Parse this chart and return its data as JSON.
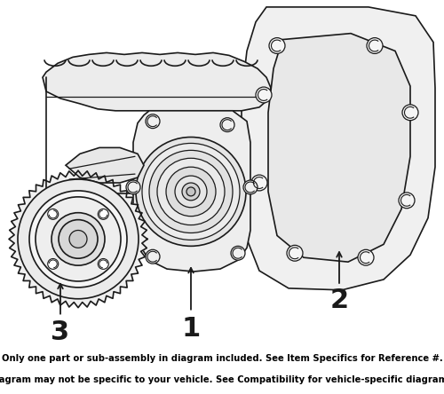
{
  "bg_color": "#ffffff",
  "diagram_bg": "#ffffff",
  "line_color": "#1a1a1a",
  "banner_color": "#e8820c",
  "banner_text_color": "#000000",
  "banner_line1": "Only one part or sub-assembly in diagram included. See Item Specifics for Reference #.",
  "banner_line2": "Diagram may not be specific to your vehicle. See Compatibility for vehicle-specific diagrams.",
  "label1": "1",
  "label2": "2",
  "label3": "3",
  "fig_width": 5.0,
  "fig_height": 4.44,
  "dpi": 100,
  "banner_fontsize": 7.2,
  "label_fontsize": 22
}
